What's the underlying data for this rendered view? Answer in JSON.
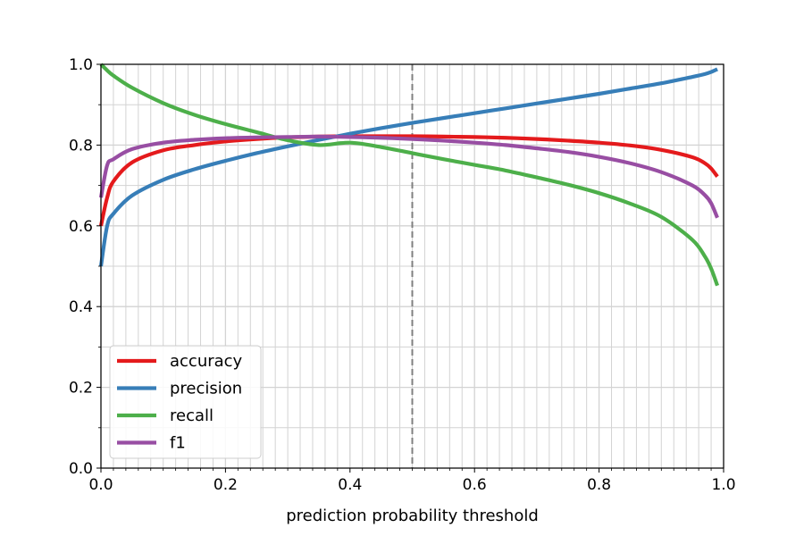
{
  "chart_data": {
    "type": "line",
    "title": "",
    "xlabel": "prediction probability threshold",
    "ylabel": "",
    "xlim": [
      0.0,
      1.0
    ],
    "ylim": [
      0.0,
      1.0
    ],
    "grid": "major and minor",
    "x_major_ticks": [
      "0.0",
      "0.2",
      "0.4",
      "0.6",
      "0.8",
      "1.0"
    ],
    "y_major_ticks": [
      "0.0",
      "0.2",
      "0.4",
      "0.6",
      "0.8",
      "1.0"
    ],
    "reference_line": {
      "x": 0.5,
      "style": "dashed",
      "color": "#808080"
    },
    "legend": {
      "placement": "lower-left"
    },
    "colors": {
      "accuracy": "#e41a1c",
      "precision": "#377eb8",
      "recall": "#4daf4a",
      "f1": "#984ea3",
      "grid": "#d3d3d3"
    },
    "x": [
      0.0,
      0.01,
      0.02,
      0.05,
      0.1,
      0.15,
      0.2,
      0.25,
      0.3,
      0.35,
      0.4,
      0.45,
      0.5,
      0.55,
      0.6,
      0.65,
      0.7,
      0.75,
      0.8,
      0.85,
      0.9,
      0.95,
      0.97,
      0.98,
      0.99
    ],
    "series": [
      {
        "name": "accuracy",
        "values": [
          0.6,
          0.67,
          0.71,
          0.757,
          0.787,
          0.8,
          0.809,
          0.815,
          0.819,
          0.821,
          0.822,
          0.822,
          0.822,
          0.821,
          0.82,
          0.818,
          0.815,
          0.811,
          0.806,
          0.799,
          0.788,
          0.77,
          0.755,
          0.742,
          0.722
        ]
      },
      {
        "name": "precision",
        "values": [
          0.5,
          0.6,
          0.63,
          0.675,
          0.714,
          0.74,
          0.761,
          0.78,
          0.797,
          0.813,
          0.828,
          0.842,
          0.855,
          0.867,
          0.879,
          0.891,
          0.903,
          0.915,
          0.927,
          0.94,
          0.953,
          0.969,
          0.976,
          0.981,
          0.988
        ]
      },
      {
        "name": "recall",
        "values": [
          1.0,
          0.985,
          0.972,
          0.942,
          0.904,
          0.875,
          0.852,
          0.832,
          0.812,
          0.8,
          0.806,
          0.795,
          0.78,
          0.765,
          0.751,
          0.737,
          0.72,
          0.702,
          0.681,
          0.655,
          0.622,
          0.565,
          0.524,
          0.494,
          0.452
        ]
      },
      {
        "name": "f1",
        "values": [
          0.67,
          0.75,
          0.765,
          0.79,
          0.806,
          0.813,
          0.817,
          0.819,
          0.82,
          0.821,
          0.82,
          0.818,
          0.815,
          0.811,
          0.806,
          0.8,
          0.792,
          0.783,
          0.771,
          0.755,
          0.733,
          0.7,
          0.676,
          0.656,
          0.62
        ]
      }
    ]
  }
}
